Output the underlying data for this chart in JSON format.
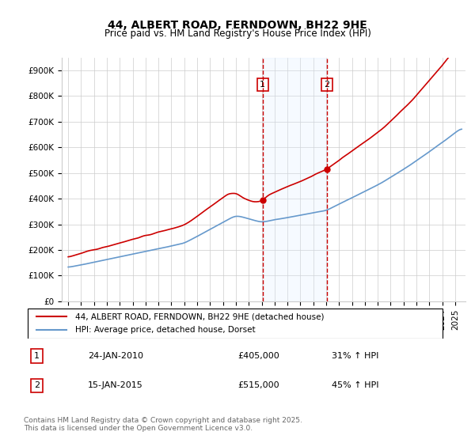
{
  "title": "44, ALBERT ROAD, FERNDOWN, BH22 9HE",
  "subtitle": "Price paid vs. HM Land Registry's House Price Index (HPI)",
  "legend_line1": "44, ALBERT ROAD, FERNDOWN, BH22 9HE (detached house)",
  "legend_line2": "HPI: Average price, detached house, Dorset",
  "annotation1_label": "1",
  "annotation1_date": "24-JAN-2010",
  "annotation1_price": "£405,000",
  "annotation1_hpi": "31% ↑ HPI",
  "annotation2_label": "2",
  "annotation2_date": "15-JAN-2015",
  "annotation2_price": "£515,000",
  "annotation2_hpi": "45% ↑ HPI",
  "footnote": "Contains HM Land Registry data © Crown copyright and database right 2025.\nThis data is licensed under the Open Government Licence v3.0.",
  "ylim": [
    0,
    950000
  ],
  "yticks": [
    0,
    100000,
    200000,
    300000,
    400000,
    500000,
    600000,
    700000,
    800000,
    900000
  ],
  "ylabel_format": "£{0}K",
  "red_color": "#cc0000",
  "blue_color": "#6699cc",
  "shade_color": "#ddeeff",
  "vline_color": "#cc0000",
  "grid_color": "#cccccc",
  "background_color": "#ffffff",
  "sale1_year": 2010.07,
  "sale2_year": 2015.05,
  "sale1_price": 405000,
  "sale2_price": 515000,
  "hpi_sale1": 308397,
  "hpi_sale2": 356000
}
